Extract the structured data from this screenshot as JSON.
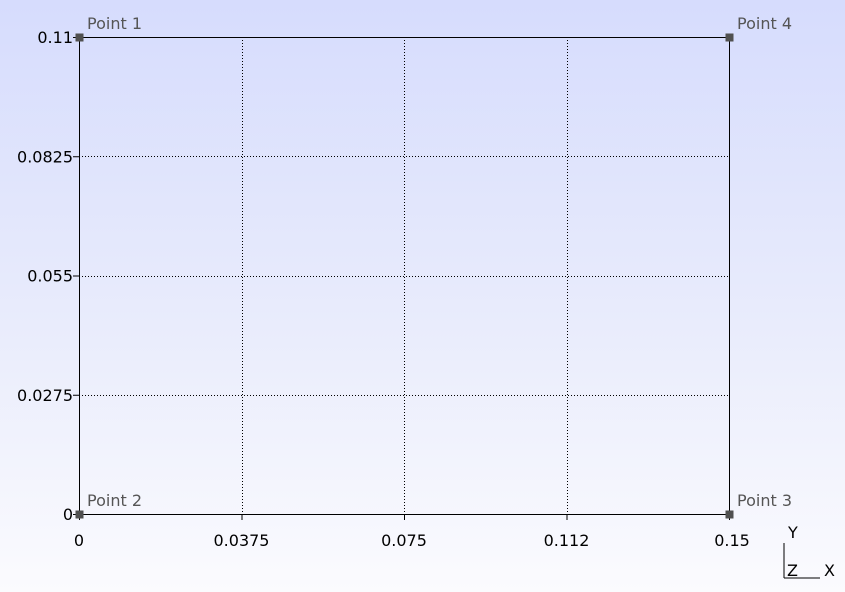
{
  "chart_data": {
    "type": "scatter",
    "title": "",
    "xlabel": "",
    "ylabel": "",
    "xlim": [
      0,
      0.15
    ],
    "ylim": [
      0,
      0.11
    ],
    "x_ticks": [
      "0",
      "0.0375",
      "0.075",
      "0.112",
      "0.15"
    ],
    "x_tick_values": [
      0,
      0.0375,
      0.075,
      0.1125,
      0.15
    ],
    "y_ticks": [
      "0",
      "0.0275",
      "0.055",
      "0.0825",
      "0.11"
    ],
    "y_tick_values": [
      0,
      0.0275,
      0.055,
      0.0825,
      0.11
    ],
    "grid": true,
    "points": [
      {
        "name": "Point 1",
        "x": 0,
        "y": 0.11
      },
      {
        "name": "Point 2",
        "x": 0,
        "y": 0
      },
      {
        "name": "Point 3",
        "x": 0.15,
        "y": 0
      },
      {
        "name": "Point 4",
        "x": 0.15,
        "y": 0.11
      }
    ],
    "point_color": "#505050",
    "line_color": "#000000"
  },
  "axes_triad": {
    "labels": [
      "Y",
      "Z",
      "X"
    ]
  }
}
